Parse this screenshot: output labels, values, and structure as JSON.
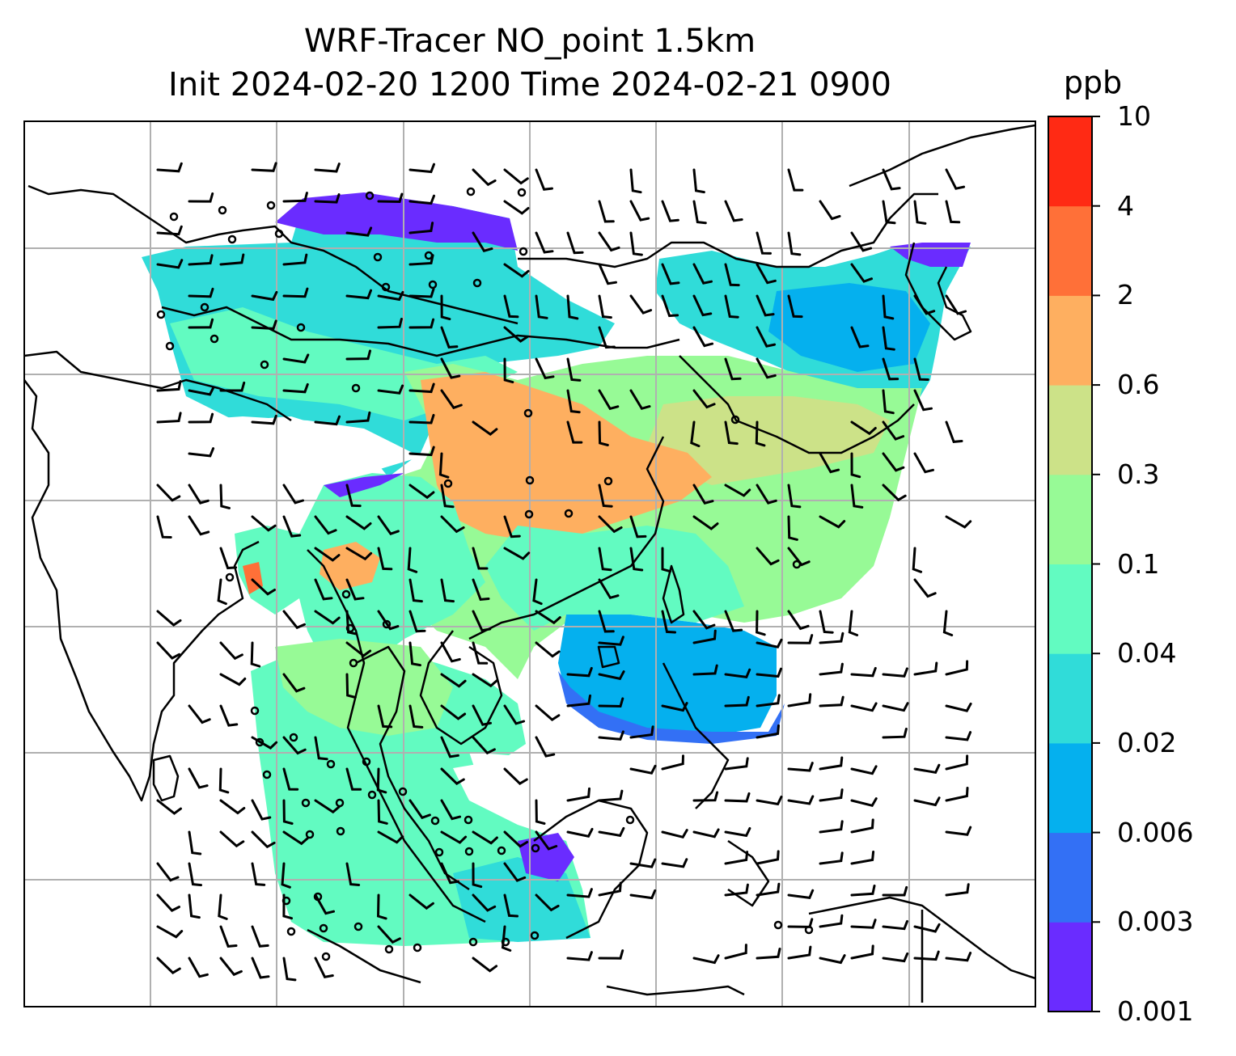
{
  "title": {
    "line1": "WRF-Tracer NO_point 1.5km",
    "line2": "Init 2024-02-20 1200 Time 2024-02-21 0900"
  },
  "colorbar": {
    "unit": "ppb",
    "ticks": [
      "0.001",
      "0.003",
      "0.006",
      "0.02",
      "0.04",
      "0.1",
      "0.3",
      "0.6",
      "2",
      "4",
      "10"
    ],
    "colors": [
      "#6a2cff",
      "#3370f5",
      "#05b0ee",
      "#30dcd9",
      "#62fbc1",
      "#97fa96",
      "#cce288",
      "#feaf60",
      "#ff7038",
      "#ff2a14"
    ]
  },
  "map": {
    "gridlines": true,
    "overlay": "wind barbs",
    "colors": {
      "grid": "#b0b0b0",
      "coast": "#000000"
    }
  }
}
